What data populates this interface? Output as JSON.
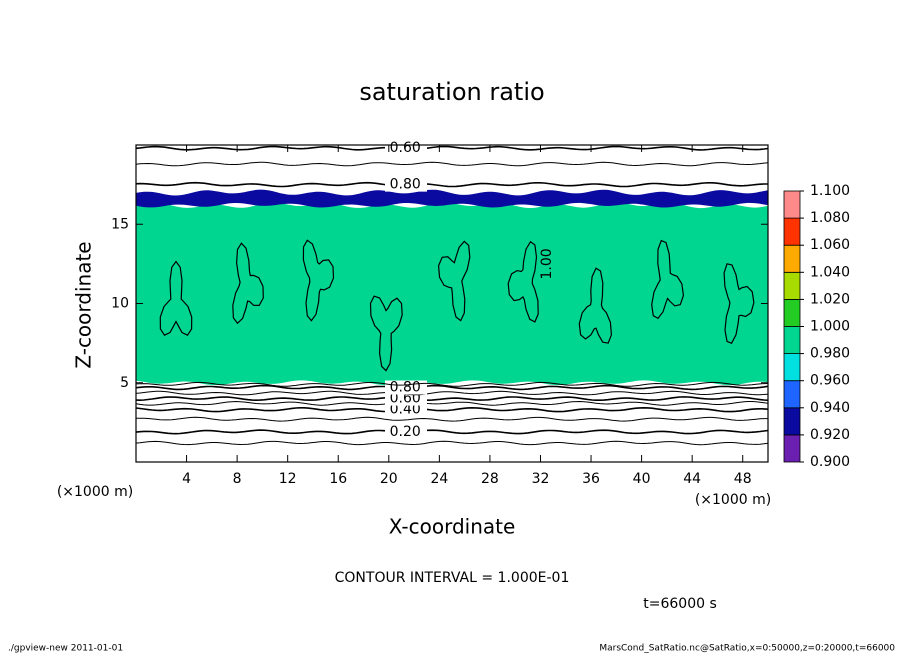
{
  "chart_data": {
    "type": "contour",
    "title": "saturation ratio",
    "xlabel": "X-coordinate",
    "ylabel": "Z-coordinate",
    "x_unit": "(×1000 m)",
    "y_unit": "(×1000 m)",
    "xlim": [
      0,
      50
    ],
    "ylim": [
      0,
      20
    ],
    "xticks": [
      4,
      8,
      12,
      16,
      20,
      24,
      28,
      32,
      36,
      40,
      44,
      48
    ],
    "yticks": [
      5,
      10,
      15
    ],
    "shaded": [
      {
        "value": 1.0,
        "z": [
          5,
          16.2
        ],
        "label": "1.00"
      },
      {
        "value": 0.93,
        "z": [
          16.2,
          17
        ]
      }
    ],
    "lower_contours": {
      "levels": [
        0.1,
        0.2,
        0.3,
        0.4,
        0.5,
        0.6,
        0.7,
        0.8,
        0.9
      ],
      "labels": [
        null,
        "0.20",
        null,
        "0.40",
        null,
        "0.60",
        null,
        "0.80",
        null
      ],
      "z": [
        1.2,
        1.9,
        2.7,
        3.3,
        3.7,
        4.0,
        4.35,
        4.7,
        4.9
      ]
    },
    "upper_contours": {
      "levels": [
        0.6,
        0.7,
        0.8
      ],
      "labels": [
        "0.60",
        null,
        "0.80"
      ],
      "z": [
        19.8,
        18.8,
        17.5
      ]
    },
    "colorbar": {
      "ticks": [
        {
          "value": 0.9,
          "label": "0.900"
        },
        {
          "value": 0.92,
          "label": "0.920"
        },
        {
          "value": 0.94,
          "label": "0.940"
        },
        {
          "value": 0.96,
          "label": "0.960"
        },
        {
          "value": 0.98,
          "label": "0.980"
        },
        {
          "value": 1.0,
          "label": "1.000"
        },
        {
          "value": 1.02,
          "label": "1.020"
        },
        {
          "value": 1.04,
          "label": "1.040"
        },
        {
          "value": 1.06,
          "label": "1.060"
        },
        {
          "value": 1.08,
          "label": "1.080"
        },
        {
          "value": 1.1,
          "label": "1.100"
        }
      ],
      "colors": [
        "#6a1fb0",
        "#0a0aa0",
        "#1e64ff",
        "#00e0e0",
        "#00d68f",
        "#22cc22",
        "#a8dc00",
        "#ffaa00",
        "#ff3300",
        "#ff8a8a"
      ]
    },
    "contour_interval": "CONTOUR INTERVAL = 1.000E-01",
    "time": "t=66000 s",
    "footer_left": "./gpview-new  2011-01-01",
    "footer_right": "MarsCond_SatRatio.nc@SatRatio,x=0:50000,z=0:20000,t=66000"
  }
}
